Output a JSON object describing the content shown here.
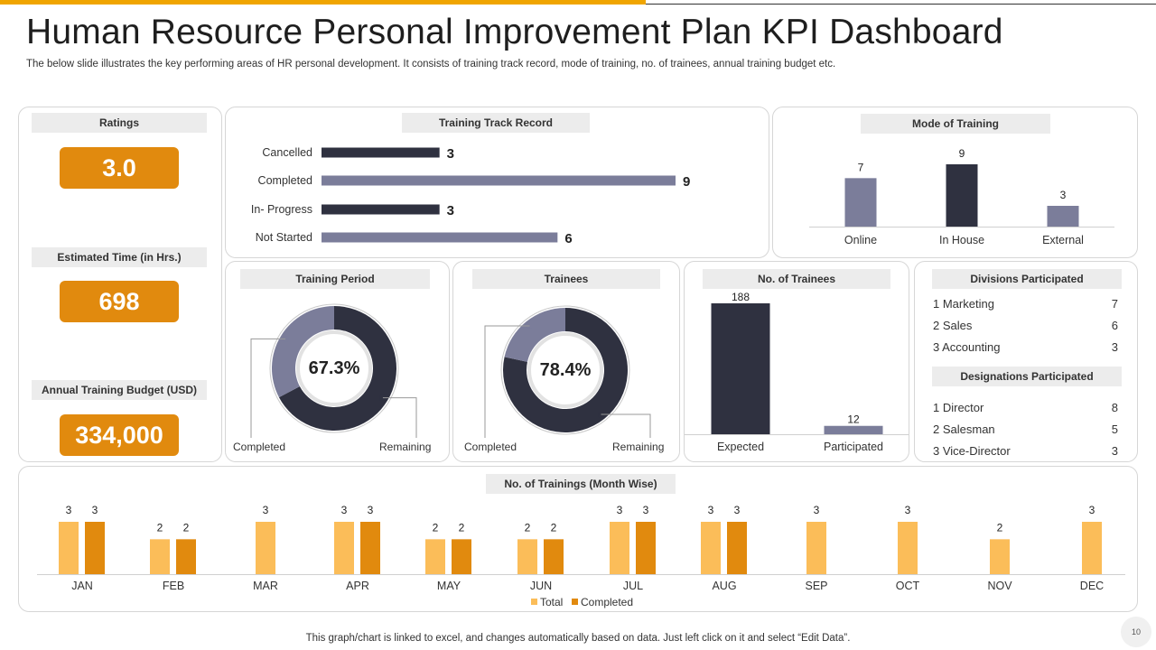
{
  "header": {
    "title": "Human Resource Personal Improvement Plan KPI Dashboard",
    "subtitle": "The below slide illustrates the key performing areas of HR personal development. It consists of training track record, mode of training, no. of trainees, annual training budget etc."
  },
  "colors": {
    "accent": "#e18a0e",
    "light_orange": "#fbbd59",
    "dark": "#2f3140",
    "slate": "#7b7d9a"
  },
  "kpis": [
    {
      "label": "Ratings",
      "value": "3.0"
    },
    {
      "label": "Estimated Time (in Hrs.)",
      "value": "698"
    },
    {
      "label": "Annual Training Budget (USD)",
      "value": "334,000"
    }
  ],
  "track_record": {
    "title": "Training  Track Record",
    "chart_data": {
      "type": "bar",
      "orientation": "horizontal",
      "categories": [
        "Cancelled",
        "Completed",
        "In- Progress",
        "Not Started"
      ],
      "values": [
        3,
        9,
        3,
        6
      ],
      "xlim": [
        0,
        9.5
      ]
    }
  },
  "mode": {
    "title": "Mode of Training",
    "chart_data": {
      "type": "bar",
      "categories": [
        "Online",
        "In House",
        "External"
      ],
      "values": [
        7,
        9,
        3
      ],
      "ylim": [
        0,
        10
      ]
    }
  },
  "training_period": {
    "title": "Training  Period",
    "center_label": "67.3%",
    "legend_left": "Completed",
    "legend_right": "Remaining",
    "chart_data": {
      "type": "pie",
      "labels": [
        "Completed",
        "Remaining"
      ],
      "values": [
        67.3,
        32.7
      ]
    }
  },
  "trainees": {
    "title": "Trainees",
    "center_label": "78.4%",
    "legend_left": "Completed",
    "legend_right": "Remaining",
    "chart_data": {
      "type": "pie",
      "labels": [
        "Completed",
        "Remaining"
      ],
      "values": [
        78.4,
        21.6
      ]
    }
  },
  "no_trainees": {
    "title": "No. of Trainees",
    "chart_data": {
      "type": "bar",
      "categories": [
        "Expected",
        "Participated"
      ],
      "values": [
        188,
        12
      ],
      "ylim": [
        0,
        190
      ]
    }
  },
  "divisions": {
    "title": "Divisions  Participated",
    "items": [
      {
        "name": "1 Marketing",
        "value": "7"
      },
      {
        "name": "2 Sales",
        "value": "6"
      },
      {
        "name": "3 Accounting",
        "value": "3"
      }
    ]
  },
  "designations": {
    "title": "Designations  Participated",
    "items": [
      {
        "name": "1 Director",
        "value": "8"
      },
      {
        "name": "2 Salesman",
        "value": "5"
      },
      {
        "name": "3 Vice-Director",
        "value": "3"
      }
    ]
  },
  "monthly": {
    "title": "No. of Trainings (Month Wise)",
    "chart_data": {
      "type": "bar",
      "categories": [
        "JAN",
        "FEB",
        "MAR",
        "APR",
        "MAY",
        "JUN",
        "JUL",
        "AUG",
        "SEP",
        "OCT",
        "NOV",
        "DEC"
      ],
      "series": [
        {
          "name": "Total",
          "values": [
            3,
            2,
            3,
            3,
            2,
            2,
            3,
            3,
            3,
            3,
            2,
            3
          ]
        },
        {
          "name": "Completed",
          "values": [
            3,
            2,
            null,
            3,
            2,
            2,
            3,
            3,
            null,
            null,
            null,
            null
          ]
        }
      ],
      "ylim": [
        0,
        3.2
      ],
      "legend": "bottom"
    }
  },
  "footer": {
    "note": "This graph/chart is linked to excel,  and changes automatically based on data. Just left click on it and select “Edit Data”.",
    "page_number": "10"
  }
}
